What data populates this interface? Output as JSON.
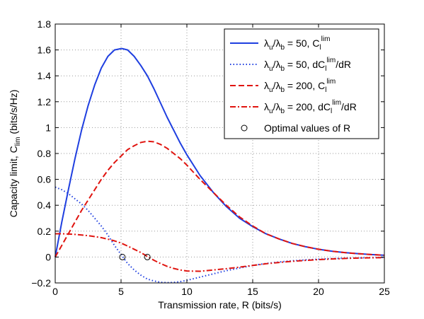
{
  "chart_data": {
    "type": "line",
    "title": "",
    "xlabel": "Transmission rate, R (bits/s)",
    "ylabel": {
      "main": "Capacity limit, C",
      "sub": "lim",
      "unit": " (bits/s/Hz)"
    },
    "xlim": [
      0,
      25
    ],
    "ylim": [
      -0.2,
      1.8
    ],
    "xticks": [
      0,
      5,
      10,
      15,
      20,
      25
    ],
    "yticks": [
      -0.2,
      0,
      0.2,
      0.4,
      0.6,
      0.8,
      1,
      1.2,
      1.4,
      1.6,
      1.8
    ],
    "xtick_labels": [
      "0",
      "5",
      "10",
      "15",
      "20",
      "25"
    ],
    "ytick_labels": [
      "−0.2",
      "0",
      "0.2",
      "0.4",
      "0.6",
      "0.8",
      "1",
      "1.2",
      "1.4",
      "1.6",
      "1.8"
    ],
    "grid": true,
    "legend_position": "top-right",
    "series": [
      {
        "legend": {
          "a": "λ",
          "b": "u",
          "c": "/λ",
          "d": "b",
          "e": " = 50, C",
          "f": "l",
          "g": "lim",
          "h": ""
        },
        "color": "#1f3fe0",
        "style": "solid",
        "x": [
          0,
          0.5,
          1,
          1.5,
          2,
          2.5,
          3,
          3.5,
          4,
          4.5,
          5,
          5.1,
          5.5,
          6,
          6.5,
          7,
          7.5,
          8,
          8.5,
          9,
          9.5,
          10,
          11,
          12,
          13,
          14,
          15,
          16,
          17,
          18,
          19,
          20,
          21,
          22,
          23,
          24,
          25
        ],
        "y": [
          0,
          0.27,
          0.52,
          0.76,
          0.98,
          1.17,
          1.33,
          1.46,
          1.55,
          1.6,
          1.61,
          1.61,
          1.6,
          1.55,
          1.48,
          1.4,
          1.3,
          1.19,
          1.08,
          0.98,
          0.88,
          0.79,
          0.63,
          0.5,
          0.39,
          0.3,
          0.235,
          0.18,
          0.14,
          0.105,
          0.08,
          0.06,
          0.045,
          0.034,
          0.026,
          0.019,
          0.014
        ]
      },
      {
        "legend": {
          "a": "λ",
          "b": "u",
          "c": "/λ",
          "d": "b",
          "e": " = 50, dC",
          "f": "l",
          "g": "lim",
          "h": "/dR"
        },
        "color": "#1f3fe0",
        "style": "dotted",
        "x": [
          0,
          0.5,
          1,
          1.5,
          2,
          2.5,
          3,
          3.5,
          4,
          4.5,
          5,
          5.5,
          6,
          6.5,
          7,
          7.5,
          8,
          8.5,
          9,
          9.5,
          10,
          11,
          12,
          13,
          14,
          15,
          16,
          17,
          18,
          19,
          20,
          21,
          22,
          23,
          24,
          25
        ],
        "y": [
          0.54,
          0.52,
          0.49,
          0.45,
          0.41,
          0.36,
          0.3,
          0.24,
          0.17,
          0.09,
          0.02,
          -0.05,
          -0.1,
          -0.14,
          -0.17,
          -0.185,
          -0.195,
          -0.198,
          -0.196,
          -0.19,
          -0.18,
          -0.155,
          -0.13,
          -0.105,
          -0.085,
          -0.065,
          -0.05,
          -0.038,
          -0.029,
          -0.022,
          -0.017,
          -0.012,
          -0.009,
          -0.007,
          -0.005,
          -0.004
        ]
      },
      {
        "legend": {
          "a": "λ",
          "b": "u",
          "c": "/λ",
          "d": "b",
          "e": " = 200, C",
          "f": "l",
          "g": "lim",
          "h": ""
        },
        "color": "#e0140f",
        "style": "dashed",
        "x": [
          0,
          0.5,
          1,
          1.5,
          2,
          2.5,
          3,
          3.5,
          4,
          4.5,
          5,
          5.5,
          6,
          6.5,
          7,
          7.5,
          8,
          8.5,
          9,
          9.5,
          10,
          11,
          12,
          13,
          14,
          15,
          16,
          17,
          18,
          19,
          20,
          21,
          22,
          23,
          24,
          25
        ],
        "y": [
          0,
          0.09,
          0.18,
          0.27,
          0.36,
          0.44,
          0.52,
          0.6,
          0.67,
          0.73,
          0.78,
          0.83,
          0.86,
          0.885,
          0.895,
          0.89,
          0.87,
          0.84,
          0.8,
          0.76,
          0.71,
          0.6,
          0.5,
          0.4,
          0.31,
          0.24,
          0.18,
          0.14,
          0.105,
          0.08,
          0.06,
          0.045,
          0.034,
          0.026,
          0.019,
          0.014
        ]
      },
      {
        "legend": {
          "a": "λ",
          "b": "u",
          "c": "/λ",
          "d": "b",
          "e": " = 200, dC",
          "f": "l",
          "g": "lim",
          "h": "/dR"
        },
        "color": "#e0140f",
        "style": "dashdot",
        "x": [
          0,
          0.5,
          1,
          1.5,
          2,
          2.5,
          3,
          3.5,
          4,
          4.5,
          5,
          5.5,
          6,
          6.5,
          7,
          7.5,
          8,
          8.5,
          9,
          9.5,
          10,
          11,
          12,
          13,
          14,
          15,
          16,
          17,
          18,
          19,
          20,
          21,
          22,
          23,
          24,
          25
        ],
        "y": [
          0.18,
          0.18,
          0.178,
          0.175,
          0.17,
          0.165,
          0.158,
          0.15,
          0.138,
          0.125,
          0.108,
          0.085,
          0.06,
          0.035,
          0.005,
          -0.025,
          -0.05,
          -0.072,
          -0.088,
          -0.1,
          -0.108,
          -0.11,
          -0.1,
          -0.09,
          -0.078,
          -0.065,
          -0.052,
          -0.042,
          -0.033,
          -0.026,
          -0.02,
          -0.015,
          -0.011,
          -0.008,
          -0.006,
          -0.004
        ]
      }
    ],
    "optimal_points": {
      "legend": "Optimal values of R",
      "x": [
        5.1,
        7.0
      ],
      "y": [
        0,
        0
      ]
    }
  }
}
